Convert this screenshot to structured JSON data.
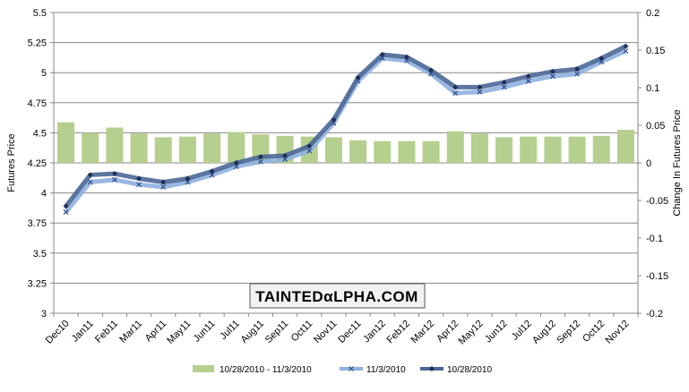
{
  "watermark": {
    "text": "TAINTEDαLPHA.COM"
  },
  "chart_data": {
    "type": "bar+line",
    "ylabel": "Futures Price",
    "y2label": "Change In Futures Price",
    "ylim": [
      3,
      5.5
    ],
    "y2lim": [
      -0.2,
      0.2
    ],
    "yticks": [
      "3",
      "3.25",
      "3.5",
      "3.75",
      "4",
      "4.25",
      "4.5",
      "4.75",
      "5",
      "5.25",
      "5.5"
    ],
    "y2ticks": [
      "-0.2",
      "-0.15",
      "-0.1",
      "-0.05",
      "0",
      "0.05",
      "0.1",
      "0.15",
      "0.2"
    ],
    "categories": [
      "Dec10",
      "Jan11",
      "Feb11",
      "Mar11",
      "Apr11",
      "May11",
      "Jun11",
      "Jul11",
      "Aug11",
      "Sep11",
      "Oct11",
      "Nov11",
      "Dec11",
      "Jan12",
      "Feb12",
      "Mar12",
      "Apr12",
      "May12",
      "Jun12",
      "Jul12",
      "Aug12",
      "Sep12",
      "Oct12",
      "Nov12"
    ],
    "series": [
      {
        "name": "10/28/2010 - 11/3/2010",
        "kind": "bar",
        "axis": "right",
        "color": "#b5cf8e",
        "values": [
          0.054,
          0.04,
          0.047,
          0.039,
          0.034,
          0.035,
          0.039,
          0.041,
          0.038,
          0.036,
          0.035,
          0.034,
          0.03,
          0.029,
          0.029,
          0.029,
          0.042,
          0.039,
          0.034,
          0.035,
          0.035,
          0.035,
          0.036,
          0.044
        ]
      },
      {
        "name": "11/3/2010",
        "kind": "line",
        "axis": "left",
        "color": "#8fb0e0",
        "marker": "x",
        "values": [
          3.84,
          4.09,
          4.11,
          4.07,
          4.05,
          4.09,
          4.15,
          4.22,
          4.26,
          4.28,
          4.35,
          4.58,
          4.93,
          5.12,
          5.1,
          4.99,
          4.83,
          4.84,
          4.88,
          4.93,
          4.97,
          4.99,
          5.09,
          5.18
        ]
      },
      {
        "name": "10/28/2010",
        "kind": "line",
        "axis": "left",
        "color": "#4a6796",
        "marker": "diamond",
        "values": [
          3.89,
          4.15,
          4.16,
          4.12,
          4.09,
          4.12,
          4.18,
          4.25,
          4.3,
          4.31,
          4.39,
          4.61,
          4.96,
          5.15,
          5.13,
          5.02,
          4.88,
          4.88,
          4.92,
          4.97,
          5.01,
          5.03,
          5.12,
          5.22
        ]
      }
    ],
    "legend": "bottom",
    "grid": true
  }
}
